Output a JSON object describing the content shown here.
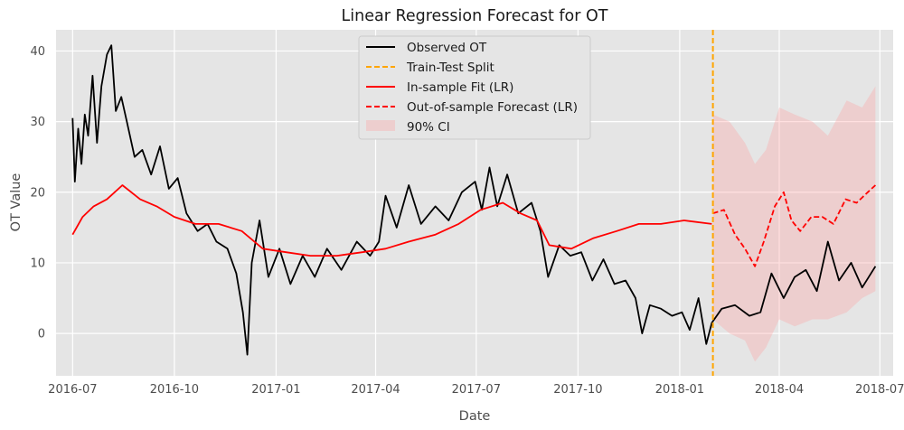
{
  "chart_data": {
    "type": "line",
    "title": "Linear Regression Forecast for OT",
    "xlabel": "Date",
    "ylabel": "OT Value",
    "xlim": [
      "2016-06-16",
      "2018-07-13"
    ],
    "ylim": [
      -6,
      43
    ],
    "x_ticks": [
      "2016-07",
      "2016-10",
      "2017-01",
      "2017-04",
      "2017-07",
      "2017-10",
      "2018-01",
      "2018-04",
      "2018-07"
    ],
    "y_ticks": [
      0,
      10,
      20,
      30,
      40
    ],
    "grid": true,
    "legend_position": "top-center",
    "split_date": "2018-01-31",
    "series": [
      {
        "name": "Observed OT",
        "color": "#000000",
        "style": "solid",
        "points": [
          [
            "2016-07-01",
            30.5
          ],
          [
            "2016-07-03",
            21.5
          ],
          [
            "2016-07-06",
            29
          ],
          [
            "2016-07-09",
            24
          ],
          [
            "2016-07-12",
            31
          ],
          [
            "2016-07-15",
            28
          ],
          [
            "2016-07-19",
            36.5
          ],
          [
            "2016-07-23",
            27
          ],
          [
            "2016-07-27",
            35
          ],
          [
            "2016-08-01",
            39.5
          ],
          [
            "2016-08-05",
            40.8
          ],
          [
            "2016-08-09",
            31.5
          ],
          [
            "2016-08-14",
            33.5
          ],
          [
            "2016-08-19",
            30
          ],
          [
            "2016-08-26",
            25
          ],
          [
            "2016-09-02",
            26
          ],
          [
            "2016-09-10",
            22.5
          ],
          [
            "2016-09-18",
            26.5
          ],
          [
            "2016-09-26",
            20.5
          ],
          [
            "2016-10-04",
            22
          ],
          [
            "2016-10-12",
            17
          ],
          [
            "2016-10-22",
            14.5
          ],
          [
            "2016-10-31",
            15.5
          ],
          [
            "2016-11-08",
            13
          ],
          [
            "2016-11-18",
            12
          ],
          [
            "2016-11-26",
            8.5
          ],
          [
            "2016-12-02",
            3
          ],
          [
            "2016-12-06",
            -3
          ],
          [
            "2016-12-10",
            10
          ],
          [
            "2016-12-17",
            16
          ],
          [
            "2016-12-25",
            8
          ],
          [
            "2017-01-04",
            12
          ],
          [
            "2017-01-14",
            7
          ],
          [
            "2017-01-25",
            11
          ],
          [
            "2017-02-05",
            8
          ],
          [
            "2017-02-16",
            12
          ],
          [
            "2017-03-01",
            9
          ],
          [
            "2017-03-15",
            13
          ],
          [
            "2017-03-27",
            11
          ],
          [
            "2017-04-04",
            13
          ],
          [
            "2017-04-10",
            19.5
          ],
          [
            "2017-04-20",
            15
          ],
          [
            "2017-05-01",
            21
          ],
          [
            "2017-05-12",
            15.5
          ],
          [
            "2017-05-25",
            18
          ],
          [
            "2017-06-06",
            16
          ],
          [
            "2017-06-18",
            20
          ],
          [
            "2017-06-30",
            21.5
          ],
          [
            "2017-07-06",
            17.5
          ],
          [
            "2017-07-13",
            23.5
          ],
          [
            "2017-07-20",
            18
          ],
          [
            "2017-07-29",
            22.5
          ],
          [
            "2017-08-08",
            17
          ],
          [
            "2017-08-20",
            18.5
          ],
          [
            "2017-08-28",
            14.5
          ],
          [
            "2017-09-04",
            8
          ],
          [
            "2017-09-14",
            12.5
          ],
          [
            "2017-09-24",
            11
          ],
          [
            "2017-10-04",
            11.5
          ],
          [
            "2017-10-14",
            7.5
          ],
          [
            "2017-10-24",
            10.5
          ],
          [
            "2017-11-03",
            7
          ],
          [
            "2017-11-13",
            7.5
          ],
          [
            "2017-11-22",
            5
          ],
          [
            "2017-11-28",
            0
          ],
          [
            "2017-12-05",
            4
          ],
          [
            "2017-12-15",
            3.5
          ],
          [
            "2017-12-25",
            2.5
          ],
          [
            "2018-01-03",
            3
          ],
          [
            "2018-01-10",
            0.5
          ],
          [
            "2018-01-18",
            5
          ],
          [
            "2018-01-25",
            -1.5
          ],
          [
            "2018-01-30",
            1.5
          ],
          [
            "2018-02-08",
            3.5
          ],
          [
            "2018-02-20",
            4
          ],
          [
            "2018-03-05",
            2.5
          ],
          [
            "2018-03-15",
            3
          ],
          [
            "2018-03-25",
            8.5
          ],
          [
            "2018-04-05",
            5
          ],
          [
            "2018-04-15",
            8
          ],
          [
            "2018-04-25",
            9
          ],
          [
            "2018-05-05",
            6
          ],
          [
            "2018-05-15",
            13
          ],
          [
            "2018-05-25",
            7.5
          ],
          [
            "2018-06-05",
            10
          ],
          [
            "2018-06-15",
            6.5
          ],
          [
            "2018-06-27",
            9.5
          ]
        ]
      },
      {
        "name": "Train-Test Split",
        "color": "#ffa500",
        "style": "dashed"
      },
      {
        "name": "In-sample Fit (LR)",
        "color": "#ff0000",
        "style": "solid",
        "points": [
          [
            "2016-07-01",
            14
          ],
          [
            "2016-07-10",
            16.5
          ],
          [
            "2016-07-20",
            18
          ],
          [
            "2016-08-01",
            19
          ],
          [
            "2016-08-15",
            21
          ],
          [
            "2016-08-31",
            19
          ],
          [
            "2016-09-15",
            18
          ],
          [
            "2016-10-01",
            16.5
          ],
          [
            "2016-10-20",
            15.5
          ],
          [
            "2016-11-10",
            15.5
          ],
          [
            "2016-12-01",
            14.5
          ],
          [
            "2016-12-20",
            12
          ],
          [
            "2017-01-10",
            11.5
          ],
          [
            "2017-02-01",
            11
          ],
          [
            "2017-02-25",
            11
          ],
          [
            "2017-03-20",
            11.5
          ],
          [
            "2017-04-10",
            12
          ],
          [
            "2017-05-01",
            13
          ],
          [
            "2017-05-25",
            14
          ],
          [
            "2017-06-15",
            15.5
          ],
          [
            "2017-07-05",
            17.5
          ],
          [
            "2017-07-25",
            18.5
          ],
          [
            "2017-08-10",
            17
          ],
          [
            "2017-08-25",
            16
          ],
          [
            "2017-09-05",
            12.5
          ],
          [
            "2017-09-25",
            12
          ],
          [
            "2017-10-15",
            13.5
          ],
          [
            "2017-11-05",
            14.5
          ],
          [
            "2017-11-25",
            15.5
          ],
          [
            "2017-12-15",
            15.5
          ],
          [
            "2018-01-05",
            16
          ],
          [
            "2018-01-30",
            15.5
          ]
        ]
      },
      {
        "name": "Out-of-sample Forecast (LR)",
        "color": "#ff0000",
        "style": "dashed",
        "points": [
          [
            "2018-01-31",
            17
          ],
          [
            "2018-02-10",
            17.5
          ],
          [
            "2018-02-20",
            14
          ],
          [
            "2018-03-01",
            12
          ],
          [
            "2018-03-10",
            9.5
          ],
          [
            "2018-03-18",
            13
          ],
          [
            "2018-03-28",
            18
          ],
          [
            "2018-04-05",
            20
          ],
          [
            "2018-04-12",
            16
          ],
          [
            "2018-04-20",
            14.5
          ],
          [
            "2018-04-30",
            16.5
          ],
          [
            "2018-05-10",
            16.5
          ],
          [
            "2018-05-20",
            15.5
          ],
          [
            "2018-05-31",
            19
          ],
          [
            "2018-06-10",
            18.5
          ],
          [
            "2018-06-20",
            20
          ],
          [
            "2018-06-27",
            21
          ]
        ]
      },
      {
        "name": "90% CI",
        "color": "#ff9999",
        "style": "band",
        "lower_points": [
          [
            "2018-01-31",
            2
          ],
          [
            "2018-02-15",
            0
          ],
          [
            "2018-03-01",
            -1
          ],
          [
            "2018-03-10",
            -4
          ],
          [
            "2018-03-20",
            -2
          ],
          [
            "2018-04-01",
            2
          ],
          [
            "2018-04-15",
            1
          ],
          [
            "2018-05-01",
            2
          ],
          [
            "2018-05-15",
            2
          ],
          [
            "2018-06-01",
            3
          ],
          [
            "2018-06-15",
            5
          ],
          [
            "2018-06-27",
            6
          ]
        ],
        "upper_points": [
          [
            "2018-01-31",
            31
          ],
          [
            "2018-02-15",
            30
          ],
          [
            "2018-03-01",
            27
          ],
          [
            "2018-03-10",
            24
          ],
          [
            "2018-03-20",
            26
          ],
          [
            "2018-04-01",
            32
          ],
          [
            "2018-04-15",
            31
          ],
          [
            "2018-05-01",
            30
          ],
          [
            "2018-05-15",
            28
          ],
          [
            "2018-06-01",
            33
          ],
          [
            "2018-06-15",
            32
          ],
          [
            "2018-06-27",
            35
          ]
        ]
      }
    ]
  }
}
